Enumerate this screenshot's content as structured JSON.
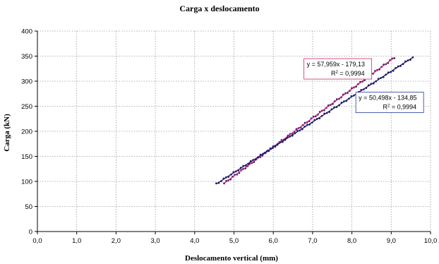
{
  "chart_data": {
    "type": "scatter",
    "title": "Carga x deslocamento",
    "xlabel": "Deslocamento vertical (mm)",
    "ylabel": "Carga (kN)",
    "xlim": [
      0,
      10
    ],
    "ylim": [
      0,
      400
    ],
    "x_ticks": [
      "0,0",
      "1,0",
      "2,0",
      "3,0",
      "4,0",
      "5,0",
      "6,0",
      "7,0",
      "8,0",
      "9,0",
      "10,0"
    ],
    "y_ticks": [
      "0",
      "50",
      "100",
      "150",
      "200",
      "250",
      "300",
      "350",
      "400"
    ],
    "grid": true,
    "series": [
      {
        "x_range": [
          4.75,
          9.08
        ],
        "trendline": {
          "slope": 57.959,
          "intercept": -179.13
        },
        "equation": "y = 57,959x - 179,13",
        "r2_prefix": "R",
        "r2_suffix": " = 0,9994",
        "points_color": "#2a1f73",
        "line_color": "#d0246e",
        "label_border": "#d0246e"
      },
      {
        "x_range": [
          4.55,
          9.55
        ],
        "trendline": {
          "slope": 50.498,
          "intercept": -134.85
        },
        "equation": "y = 50,498x - 134,85",
        "r2_prefix": "R",
        "r2_suffix": " = 0,9994",
        "points_color": "#2a1f73",
        "line_color": "#1b1a66",
        "label_border": "#1f3a9a"
      }
    ]
  }
}
